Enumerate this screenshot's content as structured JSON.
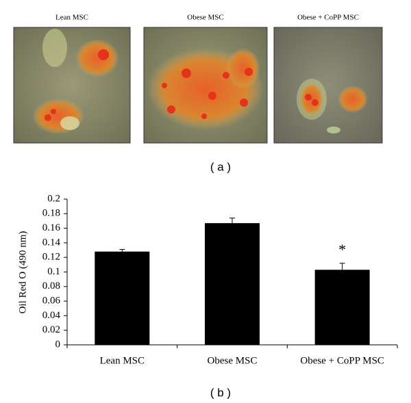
{
  "panel_a": {
    "captions": [
      "Lean MSC",
      "Obese MSC",
      "Obese + CoPP MSC"
    ],
    "label": "( a )"
  },
  "chart_data": {
    "type": "bar",
    "ylabel": "Oil Red O (490 nm)",
    "categories": [
      "Lean MSC",
      "Obese MSC",
      "Obese + CoPP MSC"
    ],
    "values": [
      0.128,
      0.167,
      0.103
    ],
    "errors": [
      0.003,
      0.007,
      0.009
    ],
    "color": "#000000",
    "ylim": [
      0,
      0.2
    ],
    "yticks": [
      0,
      0.02,
      0.04,
      0.06,
      0.08,
      0.1,
      0.12,
      0.14,
      0.16,
      0.18,
      0.2
    ],
    "annotations": [
      {
        "text": "*",
        "x": "Obese + CoPP MSC"
      }
    ],
    "label": "( b )"
  }
}
